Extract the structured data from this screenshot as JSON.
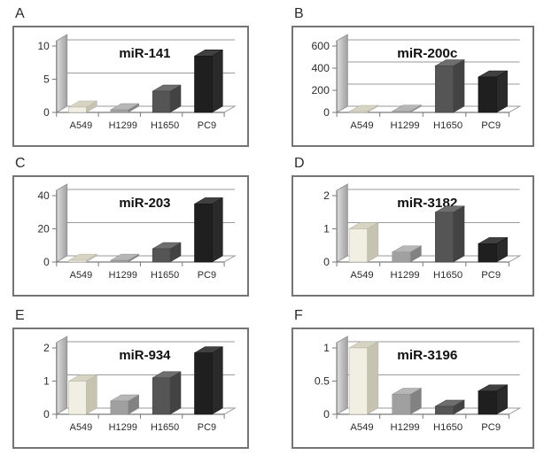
{
  "figure": {
    "description": "Six-panel 3D bar chart figure of miRNA expression in lung cancer cell lines",
    "background": "#ffffff",
    "panel_border_color": "#747474",
    "gridline_color": "#9a9a9a",
    "axis_color": "#7a7a7a",
    "text_color": "#2b2b2b",
    "wall_color_light": "#dedede",
    "wall_color_dark": "#a0a0a0"
  },
  "cell_lines": [
    "A549",
    "H1299",
    "H1650",
    "PC9"
  ],
  "bar_colors": [
    {
      "name": "A549",
      "front": "#f1efe4",
      "top": "#d7d4c3",
      "side": "#c6c3b1",
      "stroke": "#b3b0a0"
    },
    {
      "name": "H1299",
      "front": "#a0a0a0",
      "top": "#b6b6b6",
      "side": "#828282",
      "stroke": "#8c8c8c"
    },
    {
      "name": "H1650",
      "front": "#555555",
      "top": "#6e6e6e",
      "side": "#434343",
      "stroke": "#3f3f3f"
    },
    {
      "name": "PC9",
      "front": "#1f1f1f",
      "top": "#404040",
      "side": "#2a2a2a",
      "stroke": "#111111"
    }
  ],
  "chart_data": [
    {
      "type": "bar",
      "panel": "A",
      "title": "miR-141",
      "categories": [
        "A549",
        "H1299",
        "H1650",
        "PC9"
      ],
      "values": [
        0.8,
        0.4,
        3.2,
        8.5
      ],
      "yticks": [
        0,
        5,
        10
      ],
      "ylim": [
        0,
        10
      ],
      "xlabel": "",
      "ylabel": "",
      "grid": true,
      "legend": "none",
      "style": "3d"
    },
    {
      "type": "bar",
      "panel": "B",
      "title": "miR-200c",
      "categories": [
        "A549",
        "H1299",
        "H1650",
        "PC9"
      ],
      "values": [
        8,
        10,
        420,
        320
      ],
      "yticks": [
        0,
        200,
        400,
        600
      ],
      "ylim": [
        0,
        600
      ],
      "xlabel": "",
      "ylabel": "",
      "grid": true,
      "legend": "none",
      "style": "3d"
    },
    {
      "type": "bar",
      "panel": "C",
      "title": "miR-203",
      "categories": [
        "A549",
        "H1299",
        "H1650",
        "PC9"
      ],
      "values": [
        1,
        1,
        8,
        35
      ],
      "yticks": [
        0,
        20,
        40
      ],
      "ylim": [
        0,
        40
      ],
      "xlabel": "",
      "ylabel": "",
      "grid": true,
      "legend": "none",
      "style": "3d"
    },
    {
      "type": "bar",
      "panel": "D",
      "title": "miR-3182",
      "categories": [
        "A549",
        "H1299",
        "H1650",
        "PC9"
      ],
      "values": [
        1.0,
        0.3,
        1.5,
        0.55
      ],
      "yticks": [
        0,
        1,
        2
      ],
      "ylim": [
        0,
        2
      ],
      "xlabel": "",
      "ylabel": "",
      "grid": true,
      "legend": "none",
      "style": "3d"
    },
    {
      "type": "bar",
      "panel": "E",
      "title": "miR-934",
      "categories": [
        "A549",
        "H1299",
        "H1650",
        "PC9"
      ],
      "values": [
        1.0,
        0.4,
        1.1,
        1.85
      ],
      "yticks": [
        0,
        1,
        2
      ],
      "ylim": [
        0,
        2
      ],
      "xlabel": "",
      "ylabel": "",
      "grid": true,
      "legend": "none",
      "style": "3d"
    },
    {
      "type": "bar",
      "panel": "F",
      "title": "miR-3196",
      "categories": [
        "A549",
        "H1299",
        "H1650",
        "PC9"
      ],
      "values": [
        1.0,
        0.3,
        0.12,
        0.35
      ],
      "yticks": [
        0,
        0.5,
        1
      ],
      "ylim": [
        0,
        1
      ],
      "xlabel": "",
      "ylabel": "",
      "grid": true,
      "legend": "none",
      "style": "3d"
    }
  ]
}
